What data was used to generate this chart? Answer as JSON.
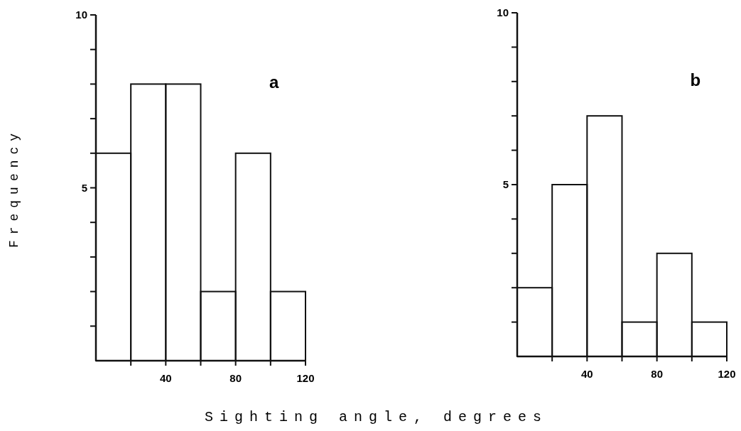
{
  "chart_data": [
    {
      "type": "histogram",
      "title": "a",
      "ylabel": "Frequency",
      "xlabel": "Sighting angle, degrees",
      "bins": [
        0,
        20,
        40,
        60,
        80,
        100,
        120
      ],
      "values": [
        6,
        8,
        8,
        2,
        6,
        2
      ],
      "color": "#111111",
      "xlim": [
        0,
        120
      ],
      "ylim": [
        0,
        10
      ],
      "xticks": [
        {
          "value": 20,
          "label": null
        },
        40,
        {
          "value": 60,
          "label": null
        },
        80,
        {
          "value": 100,
          "label": null
        },
        120
      ],
      "yticks": [
        {
          "value": 1,
          "label": null
        },
        {
          "value": 2,
          "label": null
        },
        {
          "value": 3,
          "label": null
        },
        {
          "value": 4,
          "label": null
        },
        {
          "value": 5,
          "label": "5"
        },
        {
          "value": 6,
          "label": null
        },
        {
          "value": 7,
          "label": null
        },
        {
          "value": 8,
          "label": null
        },
        {
          "value": 9,
          "label": null
        },
        {
          "value": 10,
          "label": "10"
        }
      ]
    },
    {
      "type": "histogram",
      "title": "b",
      "bins": [
        0,
        20,
        40,
        60,
        80,
        100,
        120
      ],
      "values": [
        2,
        5,
        7,
        1,
        3,
        1
      ],
      "color": "#111111",
      "xlim": [
        0,
        120
      ],
      "ylim": [
        0,
        10
      ],
      "xticks": [
        {
          "value": 20,
          "label": null
        },
        40,
        {
          "value": 60,
          "label": null
        },
        80,
        {
          "value": 100,
          "label": null
        },
        120
      ],
      "yticks": [
        {
          "value": 1,
          "label": null
        },
        {
          "value": 2,
          "label": null
        },
        {
          "value": 3,
          "label": null
        },
        {
          "value": 4,
          "label": null
        },
        {
          "value": 5,
          "label": "5"
        },
        {
          "value": 6,
          "label": null
        },
        {
          "value": 7,
          "label": null
        },
        {
          "value": 8,
          "label": null
        },
        {
          "value": 9,
          "label": null
        },
        {
          "value": 10,
          "label": "10"
        }
      ]
    }
  ]
}
